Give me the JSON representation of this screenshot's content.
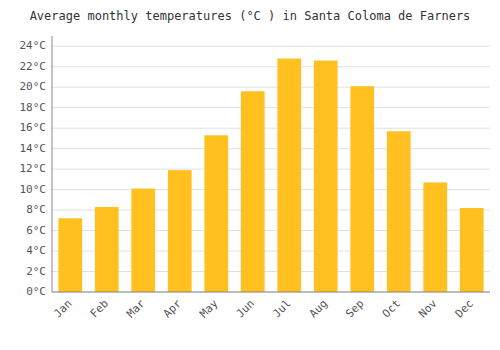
{
  "chart_data": {
    "type": "bar",
    "title": "Average monthly temperatures (°C ) in Santa Coloma de Farners",
    "categories": [
      "Jan",
      "Feb",
      "Mar",
      "Apr",
      "May",
      "Jun",
      "Jul",
      "Aug",
      "Sep",
      "Oct",
      "Nov",
      "Dec"
    ],
    "values": [
      7.2,
      8.3,
      10.1,
      11.9,
      15.3,
      19.6,
      22.8,
      22.6,
      20.1,
      15.7,
      10.7,
      8.2
    ],
    "color": "#FFC020",
    "ylim": [
      0,
      25
    ],
    "yticks": [
      {
        "value": 0,
        "label": "0°C"
      },
      {
        "value": 2,
        "label": "2°C"
      },
      {
        "value": 4,
        "label": "4°C"
      },
      {
        "value": 6,
        "label": "6°C"
      },
      {
        "value": 8,
        "label": "8°C"
      },
      {
        "value": 10,
        "label": "10°C"
      },
      {
        "value": 12,
        "label": "12°C"
      },
      {
        "value": 14,
        "label": "14°C"
      },
      {
        "value": 16,
        "label": "16°C"
      },
      {
        "value": 18,
        "label": "18°C"
      },
      {
        "value": 20,
        "label": "20°C"
      },
      {
        "value": 22,
        "label": "22°C"
      },
      {
        "value": 24,
        "label": "24°C"
      }
    ],
    "grid": true
  }
}
